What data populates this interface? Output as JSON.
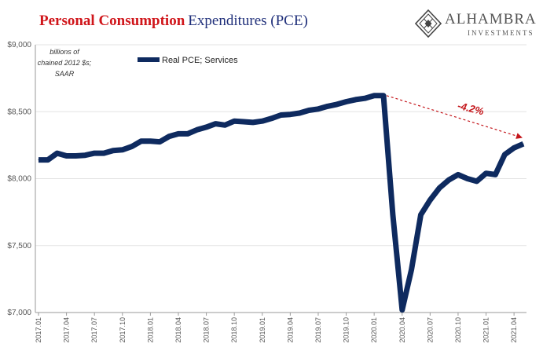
{
  "title": {
    "part1": "Personal Consumption",
    "part2": "Expenditures (PCE)"
  },
  "logo": {
    "name": "ALHAMBRA",
    "sub": "INVESTMENTS",
    "icon": "diamond-lattice-icon"
  },
  "colors": {
    "series": "#0e2a5f",
    "title_red": "#d0161b",
    "title_blue": "#1f2f7a",
    "annotation": "#c4161b"
  },
  "chart_data": {
    "type": "line",
    "unit_label": [
      "billions of",
      "chained 2012 $s;",
      "SAAR"
    ],
    "ylim": [
      7000,
      9000
    ],
    "yticks": [
      7000,
      7500,
      8000,
      8500,
      9000
    ],
    "ytick_labels": [
      "$7,000",
      "$7,500",
      "$8,000",
      "$8,500",
      "$9,000"
    ],
    "grid": true,
    "legend_position": "top-left",
    "x": [
      "2017.01",
      "2017.02",
      "2017.03",
      "2017.04",
      "2017.05",
      "2017.06",
      "2017.07",
      "2017.08",
      "2017.09",
      "2017.10",
      "2017.11",
      "2017.12",
      "2018.01",
      "2018.02",
      "2018.03",
      "2018.04",
      "2018.05",
      "2018.06",
      "2018.07",
      "2018.08",
      "2018.09",
      "2018.10",
      "2018.11",
      "2018.12",
      "2019.01",
      "2019.02",
      "2019.03",
      "2019.04",
      "2019.05",
      "2019.06",
      "2019.07",
      "2019.08",
      "2019.09",
      "2019.10",
      "2019.11",
      "2019.12",
      "2020.01",
      "2020.02",
      "2020.03",
      "2020.04",
      "2020.05",
      "2020.06",
      "2020.07",
      "2020.08",
      "2020.09",
      "2020.10",
      "2020.11",
      "2020.12",
      "2021.01",
      "2021.02",
      "2021.03",
      "2021.04",
      "2021.05"
    ],
    "x_tick_labels": [
      "2017.01",
      "2017.04",
      "2017.07",
      "2017.10",
      "2018.01",
      "2018.04",
      "2018.07",
      "2018.10",
      "2019.01",
      "2019.04",
      "2019.07",
      "2019.10",
      "2020.01",
      "2020.04",
      "2020.07",
      "2020.10",
      "2021.01",
      "2021.04"
    ],
    "series": [
      {
        "name": "Real PCE; Services",
        "values": [
          8140,
          8140,
          8190,
          8170,
          8170,
          8175,
          8190,
          8190,
          8210,
          8215,
          8240,
          8280,
          8280,
          8275,
          8315,
          8335,
          8335,
          8365,
          8385,
          8410,
          8400,
          8430,
          8425,
          8420,
          8430,
          8450,
          8475,
          8480,
          8490,
          8510,
          8520,
          8540,
          8555,
          8575,
          8590,
          8600,
          8620,
          8620,
          7730,
          7020,
          7320,
          7730,
          7840,
          7930,
          7990,
          8030,
          8000,
          7980,
          8040,
          8030,
          8180,
          8230,
          8260
        ]
      }
    ],
    "annotations": [
      {
        "text": "-4.2%",
        "from_x": "2020.02",
        "from_y": 8620,
        "to_x": "2021.05",
        "to_y": 8260
      }
    ]
  }
}
